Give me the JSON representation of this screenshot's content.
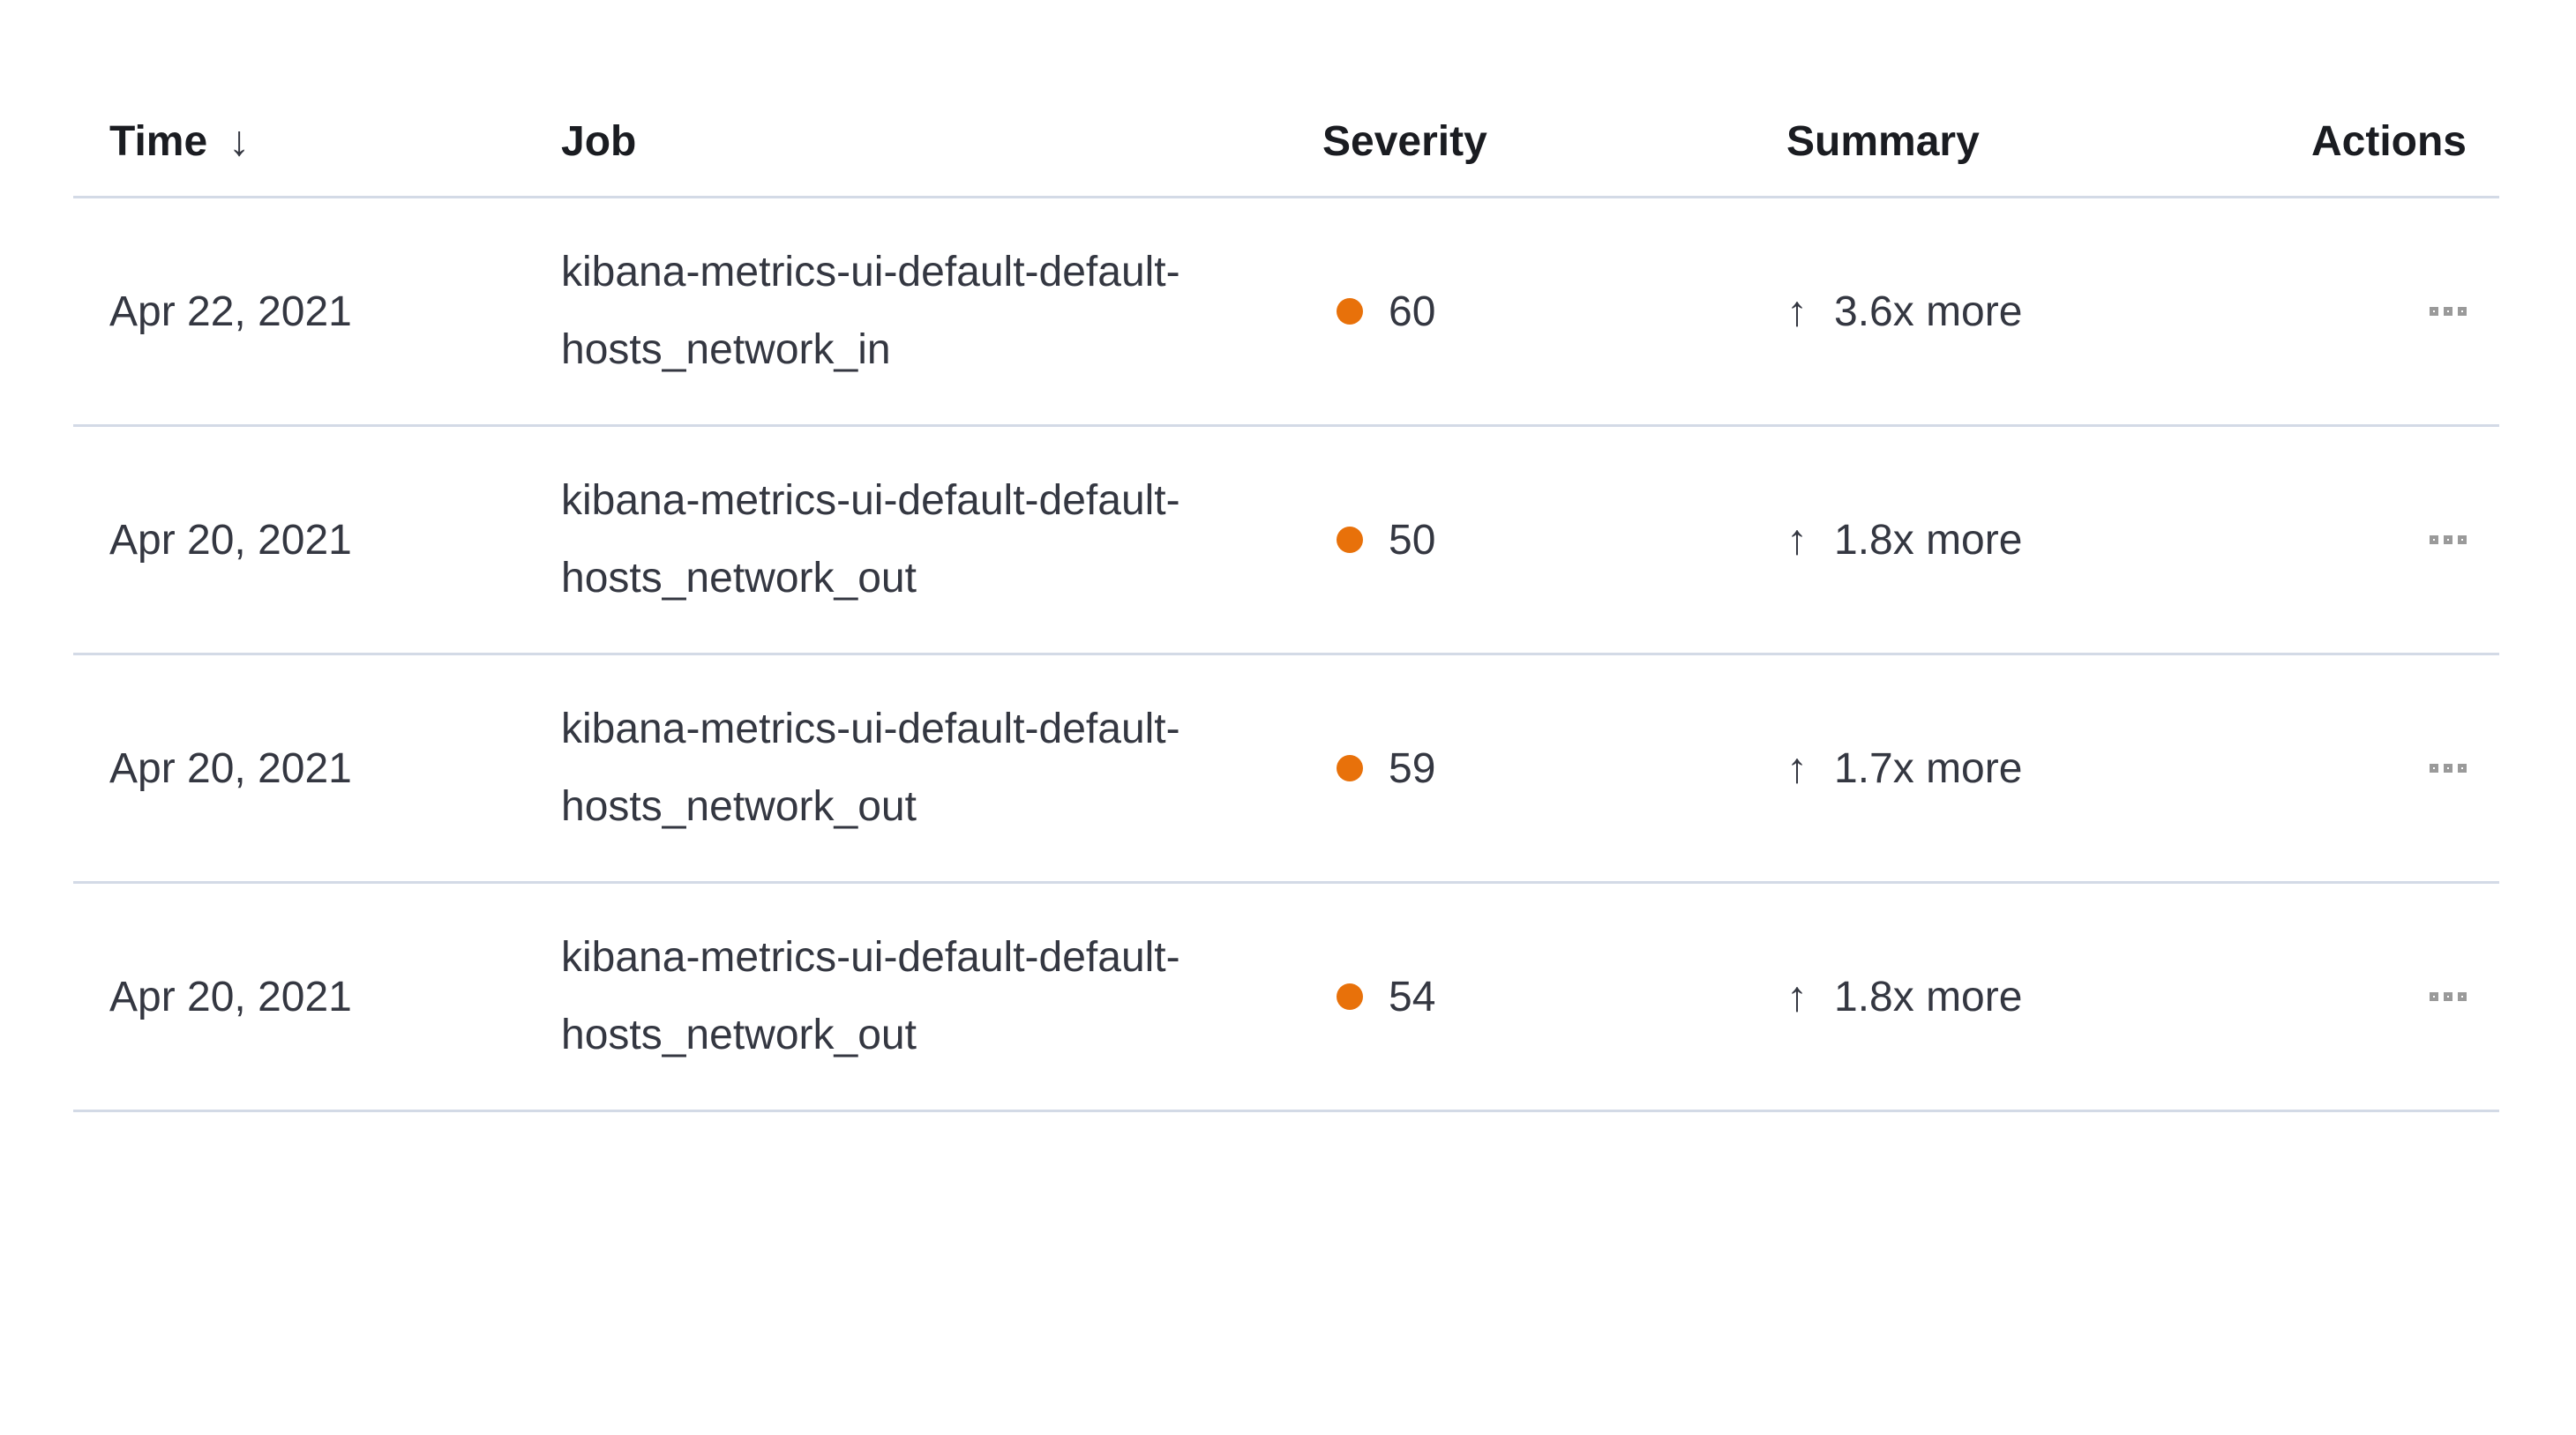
{
  "table": {
    "columns": {
      "time": {
        "label": "Time",
        "sorted": "descending"
      },
      "job": {
        "label": "Job"
      },
      "severity": {
        "label": "Severity"
      },
      "summary": {
        "label": "Summary"
      },
      "actions": {
        "label": "Actions"
      }
    },
    "icons": {
      "sort_desc": "↓",
      "trend_up": "↑",
      "actions": "boxes-horizontal"
    },
    "colors": {
      "severity_dot": "#E8710A",
      "divider": "#D3DAE6",
      "header_text": "#1A1C21",
      "body_text": "#343741",
      "actions_icon": "#9A9A9A"
    },
    "rows": [
      {
        "time": "Apr 22, 2021",
        "job": "kibana-metrics-ui-default-default-hosts_network_in",
        "severity": "60",
        "summary": "3.6x more"
      },
      {
        "time": "Apr 20, 2021",
        "job": "kibana-metrics-ui-default-default-hosts_network_out",
        "severity": "50",
        "summary": "1.8x more"
      },
      {
        "time": "Apr 20, 2021",
        "job": "kibana-metrics-ui-default-default-hosts_network_out",
        "severity": "59",
        "summary": "1.7x more"
      },
      {
        "time": "Apr 20, 2021",
        "job": "kibana-metrics-ui-default-default-hosts_network_out",
        "severity": "54",
        "summary": "1.8x more"
      }
    ]
  }
}
